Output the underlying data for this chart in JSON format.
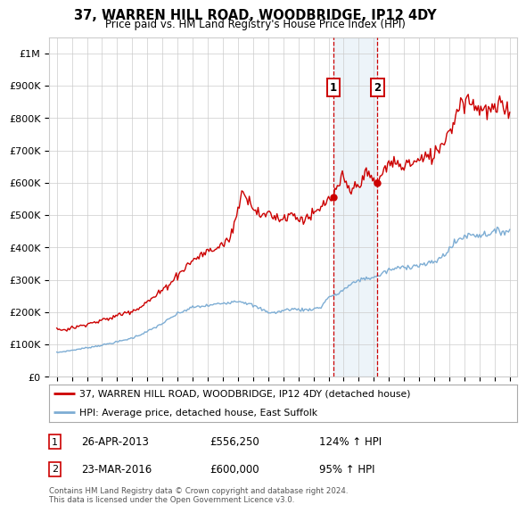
{
  "title": "37, WARREN HILL ROAD, WOODBRIDGE, IP12 4DY",
  "subtitle": "Price paid vs. HM Land Registry's House Price Index (HPI)",
  "legend_line1": "37, WARREN HILL ROAD, WOODBRIDGE, IP12 4DY (detached house)",
  "legend_line2": "HPI: Average price, detached house, East Suffolk",
  "footer": "Contains HM Land Registry data © Crown copyright and database right 2024.\nThis data is licensed under the Open Government Licence v3.0.",
  "sale1_date": "26-APR-2013",
  "sale1_price": 556250,
  "sale1_label": "124% ↑ HPI",
  "sale2_date": "23-MAR-2016",
  "sale2_price": 600000,
  "sale2_label": "95% ↑ HPI",
  "sale1_x": 2013.32,
  "sale2_x": 2016.23,
  "ylim": [
    0,
    1050000
  ],
  "xlim": [
    1994.5,
    2025.5
  ],
  "red_color": "#cc0000",
  "blue_color": "#7dadd4",
  "bg_color": "#ffffff",
  "grid_color": "#cccccc",
  "shade_color": "#cce0f0"
}
